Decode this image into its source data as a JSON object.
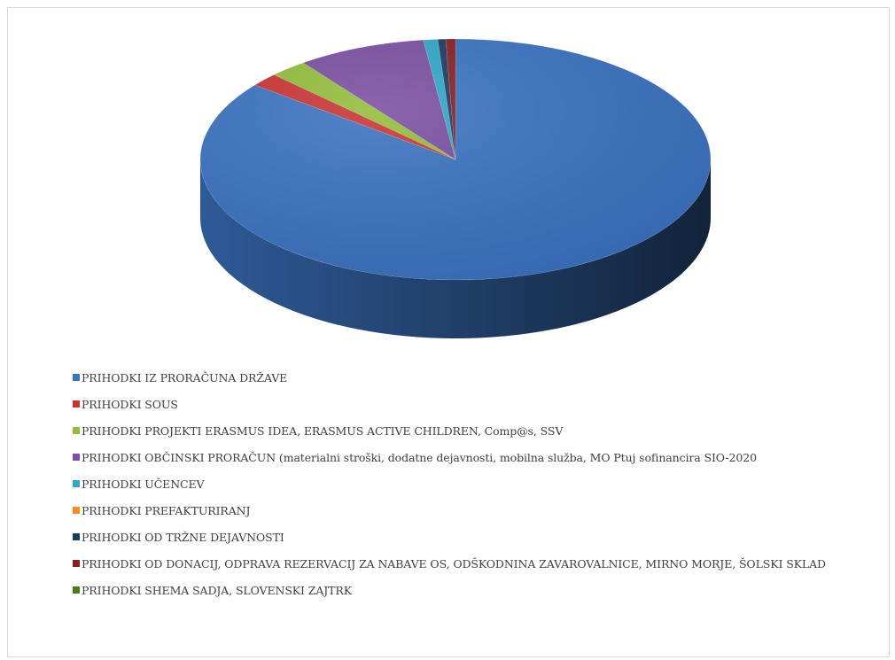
{
  "chart_data": {
    "type": "pie",
    "style": "3d",
    "title": "",
    "legend_position": "bottom",
    "slices": [
      {
        "label": "PRIHODKI IZ PRORAČUNA DRŽAVE",
        "value": 85.0,
        "color": "#3B73C1"
      },
      {
        "label": "PRIHODKI SOUS",
        "value": 1.8,
        "color": "#CA3434"
      },
      {
        "label": "PRIHODKI PROJEKTI ERASMUS IDEA, ERASMUS ACTIVE CHILDREN, Comp@s, SSV",
        "value": 2.4,
        "color": "#93BD3A"
      },
      {
        "label": "PRIHODKI OBČINSKI PRORAČUN (materialni stroški, dodatne dejavnosti, mobilna služba, MO Ptuj sofinancira SIO-2020",
        "value": 8.1,
        "color": "#7B4FA2"
      },
      {
        "label": "PRIHODKI UČENCEV",
        "value": 0.9,
        "color": "#2FA8C8"
      },
      {
        "label": "PRIHODKI  PREFAKTURIRANJ",
        "value": 0.0,
        "color": "#F08F22"
      },
      {
        "label": "PRIHODKI OD TRŽNE DEJAVNOSTI",
        "value": 0.5,
        "color": "#1F3A60"
      },
      {
        "label": "PRIHODKI OD DONACIJ, ODPRAVA REZERVACIJ ZA NABAVE OS, ODŠKODNINA ZAVAROVALNICE, MIRNO MORJE, ŠOLSKI SKLAD",
        "value": 0.6,
        "color": "#8A1F1F"
      },
      {
        "label": "PRIHODKI SHEMA SADJA, SLOVENSKI ZAJTRK",
        "value": 0.0,
        "color": "#4E7A1E"
      }
    ]
  }
}
